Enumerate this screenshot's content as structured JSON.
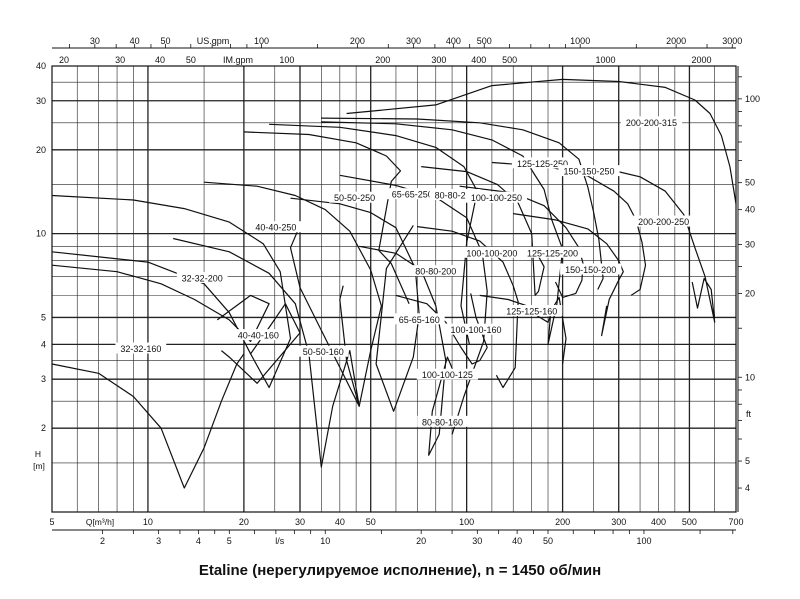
{
  "caption": "Etaline (нерегулируемое исполнение), n = 1450 об/мин",
  "chart_data": {
    "type": "line",
    "title": "",
    "xscale": "log",
    "yscale": "log",
    "xlim": [
      5,
      700
    ],
    "ylim": [
      1,
      40
    ],
    "xlabel": "Q[m³/h]",
    "ylabel": "H [m]",
    "x_ticks": [
      "5",
      "10",
      "20",
      "30",
      "40",
      "50",
      "100",
      "200",
      "300",
      "400",
      "500",
      "700"
    ],
    "y_ticks": [
      "2",
      "3",
      "4",
      "5",
      "10",
      "20",
      "30",
      "40"
    ],
    "x_ticks_ls": [
      "2",
      "3",
      "4",
      "5",
      "l/s",
      "10",
      "20",
      "30",
      "40",
      "50",
      "100"
    ],
    "top_usgpm_label": "US.gpm",
    "top_usgpm_ticks": [
      "30",
      "40",
      "50",
      "100",
      "200",
      "300",
      "400",
      "500",
      "1000",
      "2000",
      "3000"
    ],
    "top_imgpm_label": "IM.gpm",
    "top_imgpm_ticks": [
      "20",
      "30",
      "40",
      "50",
      "100",
      "200",
      "300",
      "400",
      "500",
      "1000",
      "2000"
    ],
    "right_ft_label": "ft",
    "right_ft_ticks": [
      "4",
      "5",
      "10",
      "20",
      "30",
      "40",
      "50",
      "100"
    ],
    "series": [
      {
        "name": "32-32-160",
        "points": [
          [
            5,
            3.4
          ],
          [
            7,
            3.15
          ],
          [
            9,
            2.6
          ],
          [
            11,
            2.0
          ],
          [
            13,
            1.22
          ],
          [
            15,
            1.7
          ],
          [
            17,
            2.5
          ],
          [
            19,
            3.4
          ],
          [
            20,
            3.7
          ]
        ]
      },
      {
        "name": "32-32-200",
        "points": [
          [
            5,
            7.7
          ],
          [
            8,
            7.3
          ],
          [
            11,
            6.6
          ],
          [
            14,
            5.8
          ],
          [
            18,
            4.9
          ],
          [
            21,
            4.1
          ],
          [
            24,
            5.6
          ],
          [
            21,
            6.0
          ],
          [
            16.5,
            4.9
          ]
        ]
      },
      {
        "name": "40-40-160",
        "points": [
          [
            5,
            8.6
          ],
          [
            10,
            7.9
          ],
          [
            15,
            6.6
          ],
          [
            18,
            5.2
          ],
          [
            21,
            3.7
          ],
          [
            24,
            4.6
          ],
          [
            27,
            5.6
          ],
          [
            30,
            4.4
          ],
          [
            22,
            2.9
          ],
          [
            18,
            3.6
          ],
          [
            17,
            3.8
          ]
        ]
      },
      {
        "name": "40-40-250",
        "points": [
          [
            5,
            13.7
          ],
          [
            9,
            13.2
          ],
          [
            13,
            12.3
          ],
          [
            18,
            11.0
          ],
          [
            23,
            9.2
          ],
          [
            26,
            7.3
          ],
          [
            28,
            4.2
          ],
          [
            24,
            2.8
          ],
          [
            21,
            3.7
          ]
        ]
      },
      {
        "name": "50-50-160",
        "points": [
          [
            12,
            9.6
          ],
          [
            18,
            8.6
          ],
          [
            24,
            7.2
          ],
          [
            29,
            5.6
          ],
          [
            32,
            3.7
          ],
          [
            35,
            1.45
          ],
          [
            38,
            2.4
          ],
          [
            43,
            3.8
          ],
          [
            46,
            2.4
          ],
          [
            30,
            6.4
          ],
          [
            28,
            8.9
          ],
          [
            30,
            10.7
          ]
        ]
      },
      {
        "name": "50-50-250",
        "points": [
          [
            15,
            15.3
          ],
          [
            22,
            14.8
          ],
          [
            29,
            13.7
          ],
          [
            36,
            12.2
          ],
          [
            43,
            10.2
          ],
          [
            50,
            7.4
          ],
          [
            54,
            5.5
          ],
          [
            50,
            3.8
          ],
          [
            46,
            2.4
          ],
          [
            42,
            3.5
          ],
          [
            40,
            5.8
          ],
          [
            41,
            6.5
          ]
        ]
      },
      {
        "name": "65-65-160",
        "points": [
          [
            28,
            13.4
          ],
          [
            40,
            12.8
          ],
          [
            50,
            11.9
          ],
          [
            60,
            10.5
          ],
          [
            69,
            7.5
          ],
          [
            71,
            5.1
          ],
          [
            68,
            3.6
          ],
          [
            59,
            2.3
          ],
          [
            52,
            3.4
          ],
          [
            56,
            7.5
          ],
          [
            68,
            10.7
          ]
        ]
      },
      {
        "name": "65-65-250",
        "points": [
          [
            20,
            23.2
          ],
          [
            32,
            22.7
          ],
          [
            45,
            21.2
          ],
          [
            56,
            19.0
          ],
          [
            62,
            16.8
          ],
          [
            58,
            15.4
          ],
          [
            53,
            8.7
          ],
          [
            58,
            7.8
          ],
          [
            66,
            5.6
          ]
        ]
      },
      {
        "name": "80-80-160",
        "points": [
          [
            46,
            9.0
          ],
          [
            60,
            8.5
          ],
          [
            72,
            7.4
          ],
          [
            80,
            5.5
          ],
          [
            86,
            3.5
          ],
          [
            82,
            1.9
          ],
          [
            76,
            1.6
          ],
          [
            78,
            2.3
          ],
          [
            87,
            3.6
          ],
          [
            92,
            3.1
          ]
        ]
      },
      {
        "name": "80-80-200",
        "points": [
          [
            40,
            16.2
          ],
          [
            60,
            14.9
          ],
          [
            80,
            13.5
          ],
          [
            100,
            11.4
          ],
          [
            112,
            8.5
          ],
          [
            116,
            6.2
          ],
          [
            113,
            4.1
          ],
          [
            98,
            2.6
          ],
          [
            90,
            1.9
          ]
        ]
      },
      {
        "name": "80-80-250",
        "points": [
          [
            24,
            24.7
          ],
          [
            40,
            24.1
          ],
          [
            60,
            22.5
          ],
          [
            80,
            20.4
          ],
          [
            98,
            17.4
          ],
          [
            108,
            14.2
          ],
          [
            100,
            9.3
          ],
          [
            96,
            5.5
          ],
          [
            102,
            4.0
          ]
        ]
      },
      {
        "name": "100-100-125",
        "points": [
          [
            60,
            6.0
          ],
          [
            75,
            5.6
          ],
          [
            86,
            4.8
          ],
          [
            96,
            3.9
          ],
          [
            104,
            3.4
          ],
          [
            110,
            3.5
          ],
          [
            116,
            3.9
          ],
          [
            107,
            5.0
          ],
          [
            103,
            6.1
          ]
        ]
      },
      {
        "name": "100-100-160",
        "points": [
          [
            70,
            10.6
          ],
          [
            90,
            10.2
          ],
          [
            110,
            9.4
          ],
          [
            130,
            7.9
          ],
          [
            140,
            6.5
          ],
          [
            145,
            5.7
          ],
          [
            142,
            3.3
          ],
          [
            130,
            2.8
          ],
          [
            124,
            3.1
          ]
        ]
      },
      {
        "name": "100-100-200",
        "points": [
          [
            72,
            17.4
          ],
          [
            100,
            16.7
          ],
          [
            125,
            15.0
          ],
          [
            145,
            12.9
          ],
          [
            160,
            10.0
          ],
          [
            164,
            6.0
          ],
          [
            168,
            6.2
          ],
          [
            175,
            7.6
          ],
          [
            167,
            8.4
          ]
        ]
      },
      {
        "name": "100-100-250",
        "points": [
          [
            35,
            25.2
          ],
          [
            60,
            24.8
          ],
          [
            90,
            23.6
          ],
          [
            120,
            21.7
          ],
          [
            150,
            19.0
          ],
          [
            175,
            14.4
          ],
          [
            185,
            11.2
          ],
          [
            200,
            8.8
          ],
          [
            192,
            5.6
          ],
          [
            180,
            4.0
          ],
          [
            183,
            5.0
          ]
        ]
      },
      {
        "name": "125-125-160",
        "points": [
          [
            110,
            6.0
          ],
          [
            135,
            5.8
          ],
          [
            155,
            5.5
          ],
          [
            165,
            5.1
          ],
          [
            180,
            4.8
          ],
          [
            188,
            5.5
          ],
          [
            195,
            5.9
          ],
          [
            205,
            4.2
          ],
          [
            200,
            3.4
          ]
        ]
      },
      {
        "name": "125-125-200",
        "points": [
          [
            95,
            14.8
          ],
          [
            140,
            14.0
          ],
          [
            175,
            12.6
          ],
          [
            205,
            10.5
          ],
          [
            225,
            8.9
          ],
          [
            232,
            7.8
          ],
          [
            230,
            6.8
          ],
          [
            220,
            6.1
          ],
          [
            200,
            5.9
          ],
          [
            190,
            6.7
          ]
        ]
      },
      {
        "name": "125-125-250",
        "points": [
          [
            35,
            26.0
          ],
          [
            70,
            25.8
          ],
          [
            110,
            25.0
          ],
          [
            150,
            23.6
          ],
          [
            195,
            21.2
          ],
          [
            225,
            18.5
          ],
          [
            240,
            14.7
          ],
          [
            250,
            12.0
          ],
          [
            260,
            9.5
          ],
          [
            268,
            6.9
          ],
          [
            258,
            6.3
          ]
        ]
      },
      {
        "name": "150-150-200",
        "points": [
          [
            140,
            11.8
          ],
          [
            190,
            11.2
          ],
          [
            240,
            10.4
          ],
          [
            275,
            9.2
          ],
          [
            300,
            8.0
          ],
          [
            310,
            7.3
          ],
          [
            300,
            6.8
          ],
          [
            280,
            5.8
          ],
          [
            265,
            4.3
          ],
          [
            275,
            5.5
          ]
        ]
      },
      {
        "name": "150-150-250",
        "points": [
          [
            120,
            18.0
          ],
          [
            180,
            17.4
          ],
          [
            240,
            16.1
          ],
          [
            290,
            14.2
          ],
          [
            320,
            12.8
          ],
          [
            340,
            11.2
          ],
          [
            355,
            9.3
          ],
          [
            364,
            7.7
          ],
          [
            350,
            6.3
          ],
          [
            328,
            6.0
          ]
        ]
      },
      {
        "name": "200-200-250",
        "points": [
          [
            210,
            17.4
          ],
          [
            280,
            17.0
          ],
          [
            350,
            16.0
          ],
          [
            420,
            14.2
          ],
          [
            480,
            11.7
          ],
          [
            520,
            8.9
          ],
          [
            560,
            7.0
          ],
          [
            600,
            4.8
          ],
          [
            585,
            6.3
          ],
          [
            556,
            6.9
          ],
          [
            530,
            5.4
          ],
          [
            510,
            6.7
          ]
        ]
      },
      {
        "name": "200-200-315",
        "points": [
          [
            42,
            27.0
          ],
          [
            80,
            29.0
          ],
          [
            120,
            34.0
          ],
          [
            200,
            35.8
          ],
          [
            300,
            35.2
          ],
          [
            420,
            33.5
          ],
          [
            520,
            30.2
          ],
          [
            580,
            27.0
          ],
          [
            630,
            22.5
          ],
          [
            670,
            17.4
          ],
          [
            700,
            12.8
          ]
        ]
      }
    ],
    "labels": [
      {
        "text": "32-32-160",
        "x": 9.5,
        "y": 3.85
      },
      {
        "text": "32-32-200",
        "x": 14.8,
        "y": 6.9
      },
      {
        "text": "40-40-160",
        "x": 22.2,
        "y": 4.3
      },
      {
        "text": "40-40-250",
        "x": 25.2,
        "y": 10.5
      },
      {
        "text": "50-50-160",
        "x": 35.5,
        "y": 3.75
      },
      {
        "text": "50-50-250",
        "x": 44.5,
        "y": 13.4
      },
      {
        "text": "65-65-160",
        "x": 71,
        "y": 4.9
      },
      {
        "text": "65-65-250",
        "x": 67.5,
        "y": 13.8
      },
      {
        "text": "80-80-160",
        "x": 84,
        "y": 2.1
      },
      {
        "text": "80-80-200",
        "x": 80,
        "y": 7.3
      },
      {
        "text": "80-80-250",
        "x": 92,
        "y": 13.7
      },
      {
        "text": "100-100-125",
        "x": 87,
        "y": 3.1
      },
      {
        "text": "100-100-160",
        "x": 107,
        "y": 4.5
      },
      {
        "text": "100-100-200",
        "x": 120,
        "y": 8.5
      },
      {
        "text": "100-100-250",
        "x": 124,
        "y": 13.4
      },
      {
        "text": "125-125-160",
        "x": 160,
        "y": 5.25
      },
      {
        "text": "125-125-200",
        "x": 186,
        "y": 8.5
      },
      {
        "text": "125-125-250",
        "x": 173,
        "y": 17.8
      },
      {
        "text": "150-150-200",
        "x": 245,
        "y": 7.4
      },
      {
        "text": "150-150-250",
        "x": 242,
        "y": 16.7
      },
      {
        "text": "200-200-250",
        "x": 415,
        "y": 11.0
      },
      {
        "text": "200-200-315",
        "x": 380,
        "y": 25.0
      }
    ]
  }
}
